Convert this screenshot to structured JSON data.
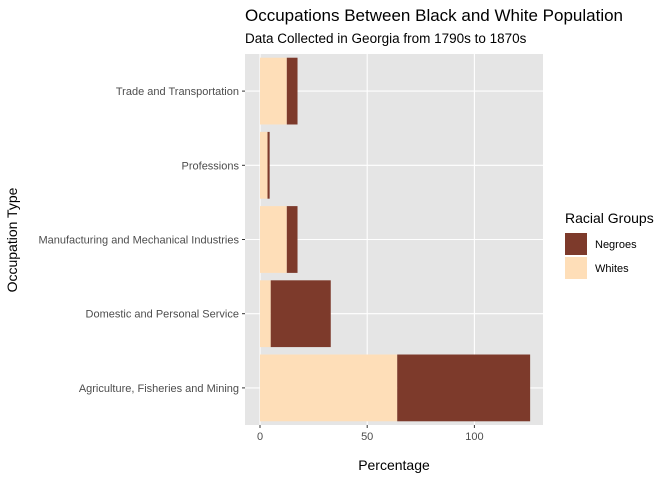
{
  "chart_data": {
    "type": "bar",
    "orientation": "horizontal",
    "stacked": true,
    "title": "Occupations Between Black and White Population",
    "subtitle": "Data Collected in Georgia from 1790s to 1870s",
    "xlabel": "Percentage",
    "ylabel": "Occupation Type",
    "xlim": [
      -7,
      132
    ],
    "x_ticks": [
      "0",
      "50",
      "100"
    ],
    "categories": [
      "Agriculture, Fisheries and Mining",
      "Domestic and Personal Service",
      "Manufacturing and Mechanical Industries",
      "Professions",
      "Trade and Transportation"
    ],
    "series": [
      {
        "name": "Whites",
        "color": "#FEDEB8",
        "values": [
          64,
          5,
          12.5,
          3.5,
          12.5
        ]
      },
      {
        "name": "Negroes",
        "color": "#7D3A2B",
        "values": [
          62,
          28,
          5,
          1,
          5
        ]
      }
    ],
    "legend": {
      "title": "Racial Groups",
      "position": "right",
      "entries": [
        "Negroes",
        "Whites"
      ]
    },
    "grid": true,
    "panel_background": "#E5E5E5"
  }
}
